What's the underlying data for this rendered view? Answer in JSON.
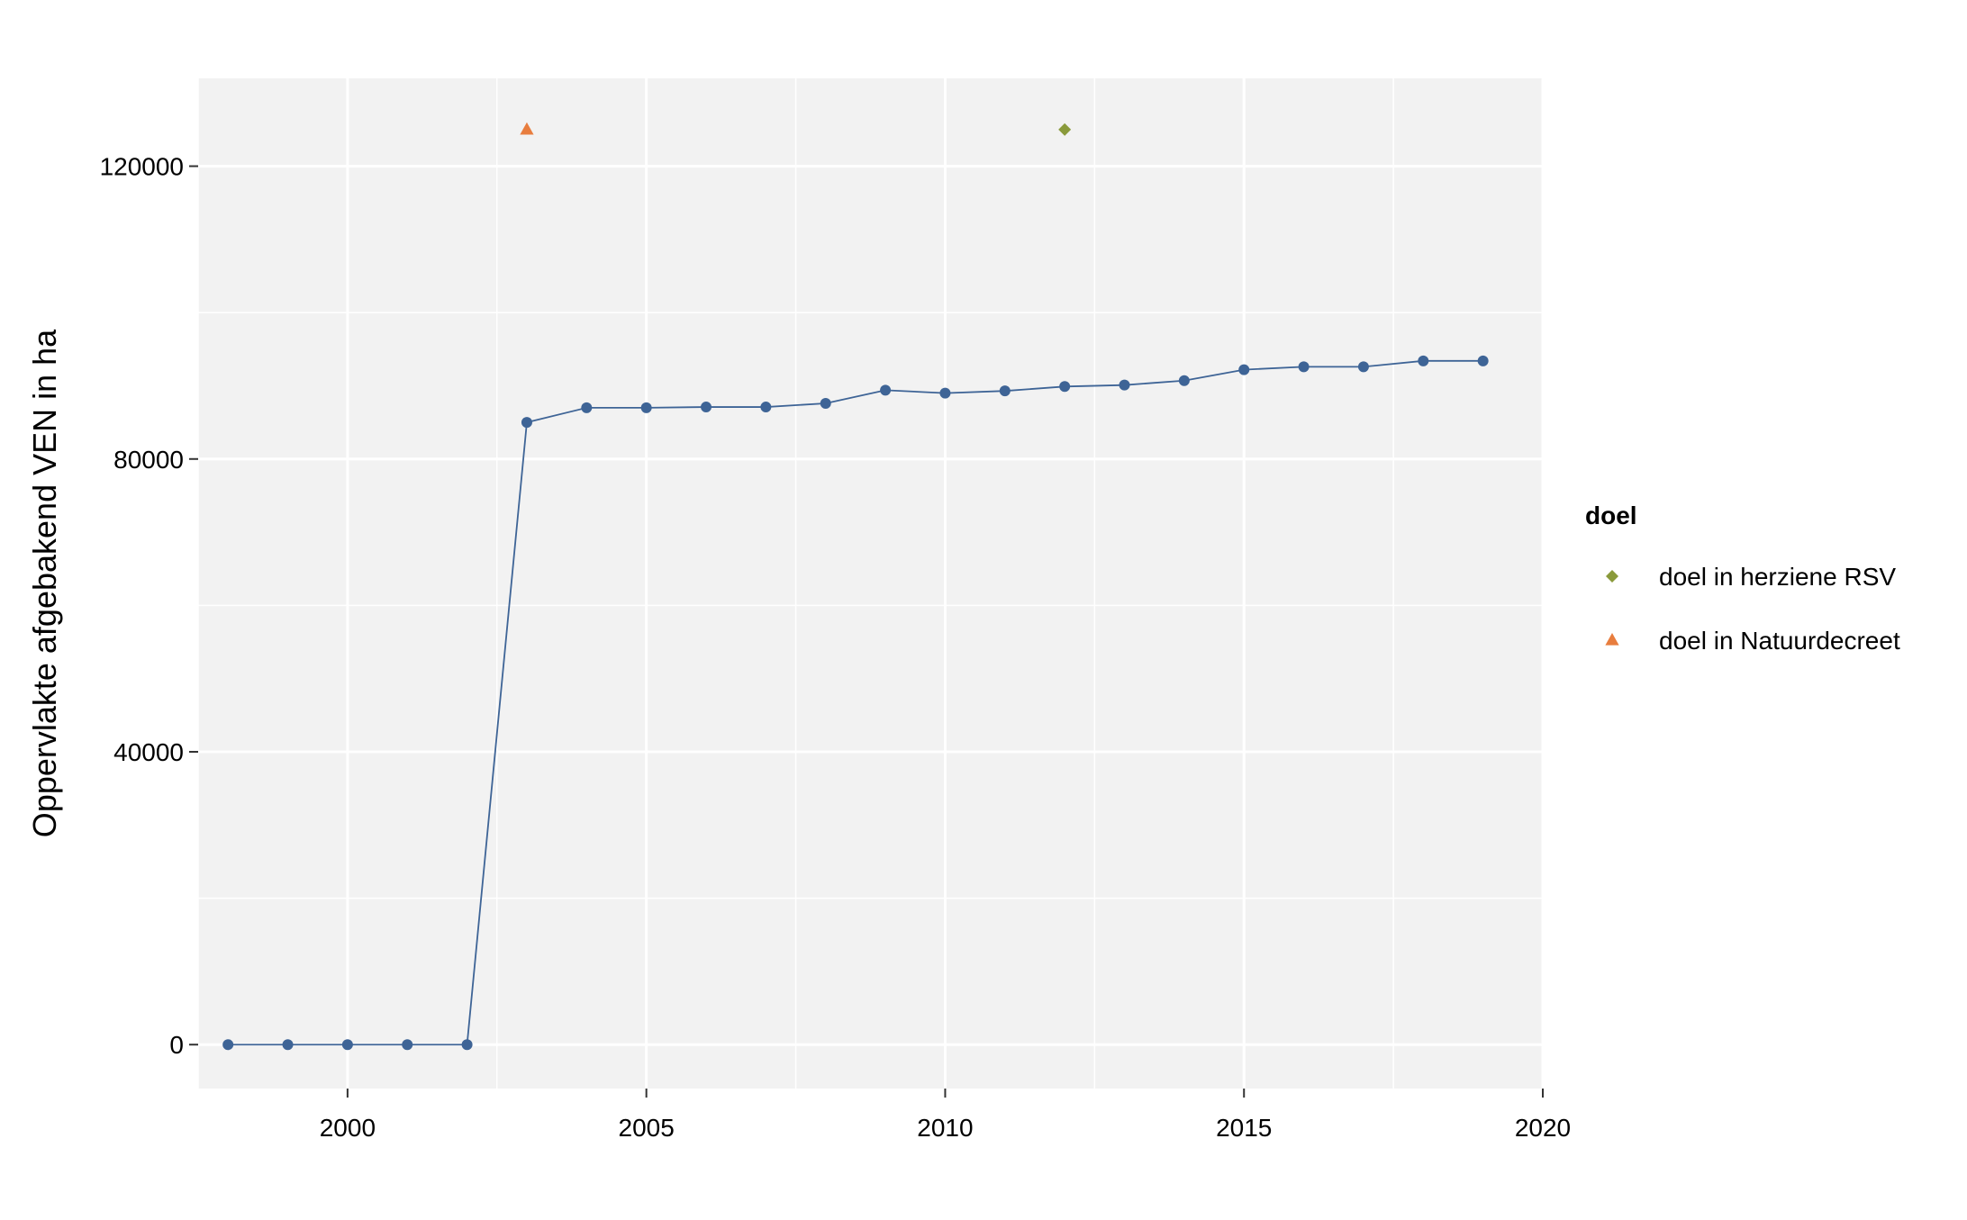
{
  "chart_data": {
    "type": "line",
    "title": "",
    "xlabel": "",
    "ylabel": "Oppervlakte afgebakend VEN in ha",
    "xlim": [
      1997.5,
      2020
    ],
    "ylim": [
      -6000,
      132000
    ],
    "x_ticks": [
      2000,
      2005,
      2010,
      2015,
      2020
    ],
    "y_ticks": [
      0,
      40000,
      80000,
      120000
    ],
    "x_tick_labels": [
      "2000",
      "2005",
      "2010",
      "2015",
      "2020"
    ],
    "y_tick_labels": [
      "0",
      "40000",
      "80000",
      "120000"
    ],
    "grid": true,
    "series": [
      {
        "color": "#3E6496",
        "marker": "circle",
        "x": [
          1998,
          1999,
          2000,
          2001,
          2002,
          2003,
          2004,
          2005,
          2006,
          2007,
          2008,
          2009,
          2010,
          2011,
          2012,
          2013,
          2014,
          2015,
          2016,
          2017,
          2018,
          2019
        ],
        "y": [
          0,
          0,
          0,
          0,
          0,
          85000,
          87000,
          87000,
          87100,
          87100,
          87600,
          89400,
          89000,
          89300,
          89900,
          90100,
          90700,
          92200,
          92600,
          92600,
          93400,
          93400
        ]
      }
    ],
    "points": [
      {
        "name": "doel in herziene RSV",
        "x": 2012,
        "y": 125000,
        "shape": "diamond",
        "color": "#8A9A3B"
      },
      {
        "name": "doel in Natuurdecreet",
        "x": 2003,
        "y": 125000,
        "shape": "triangle",
        "color": "#E87D3E"
      }
    ],
    "legend": {
      "title": "doel",
      "placement": "right",
      "entries": [
        "doel in herziene RSV",
        "doel in Natuurdecreet"
      ]
    }
  }
}
